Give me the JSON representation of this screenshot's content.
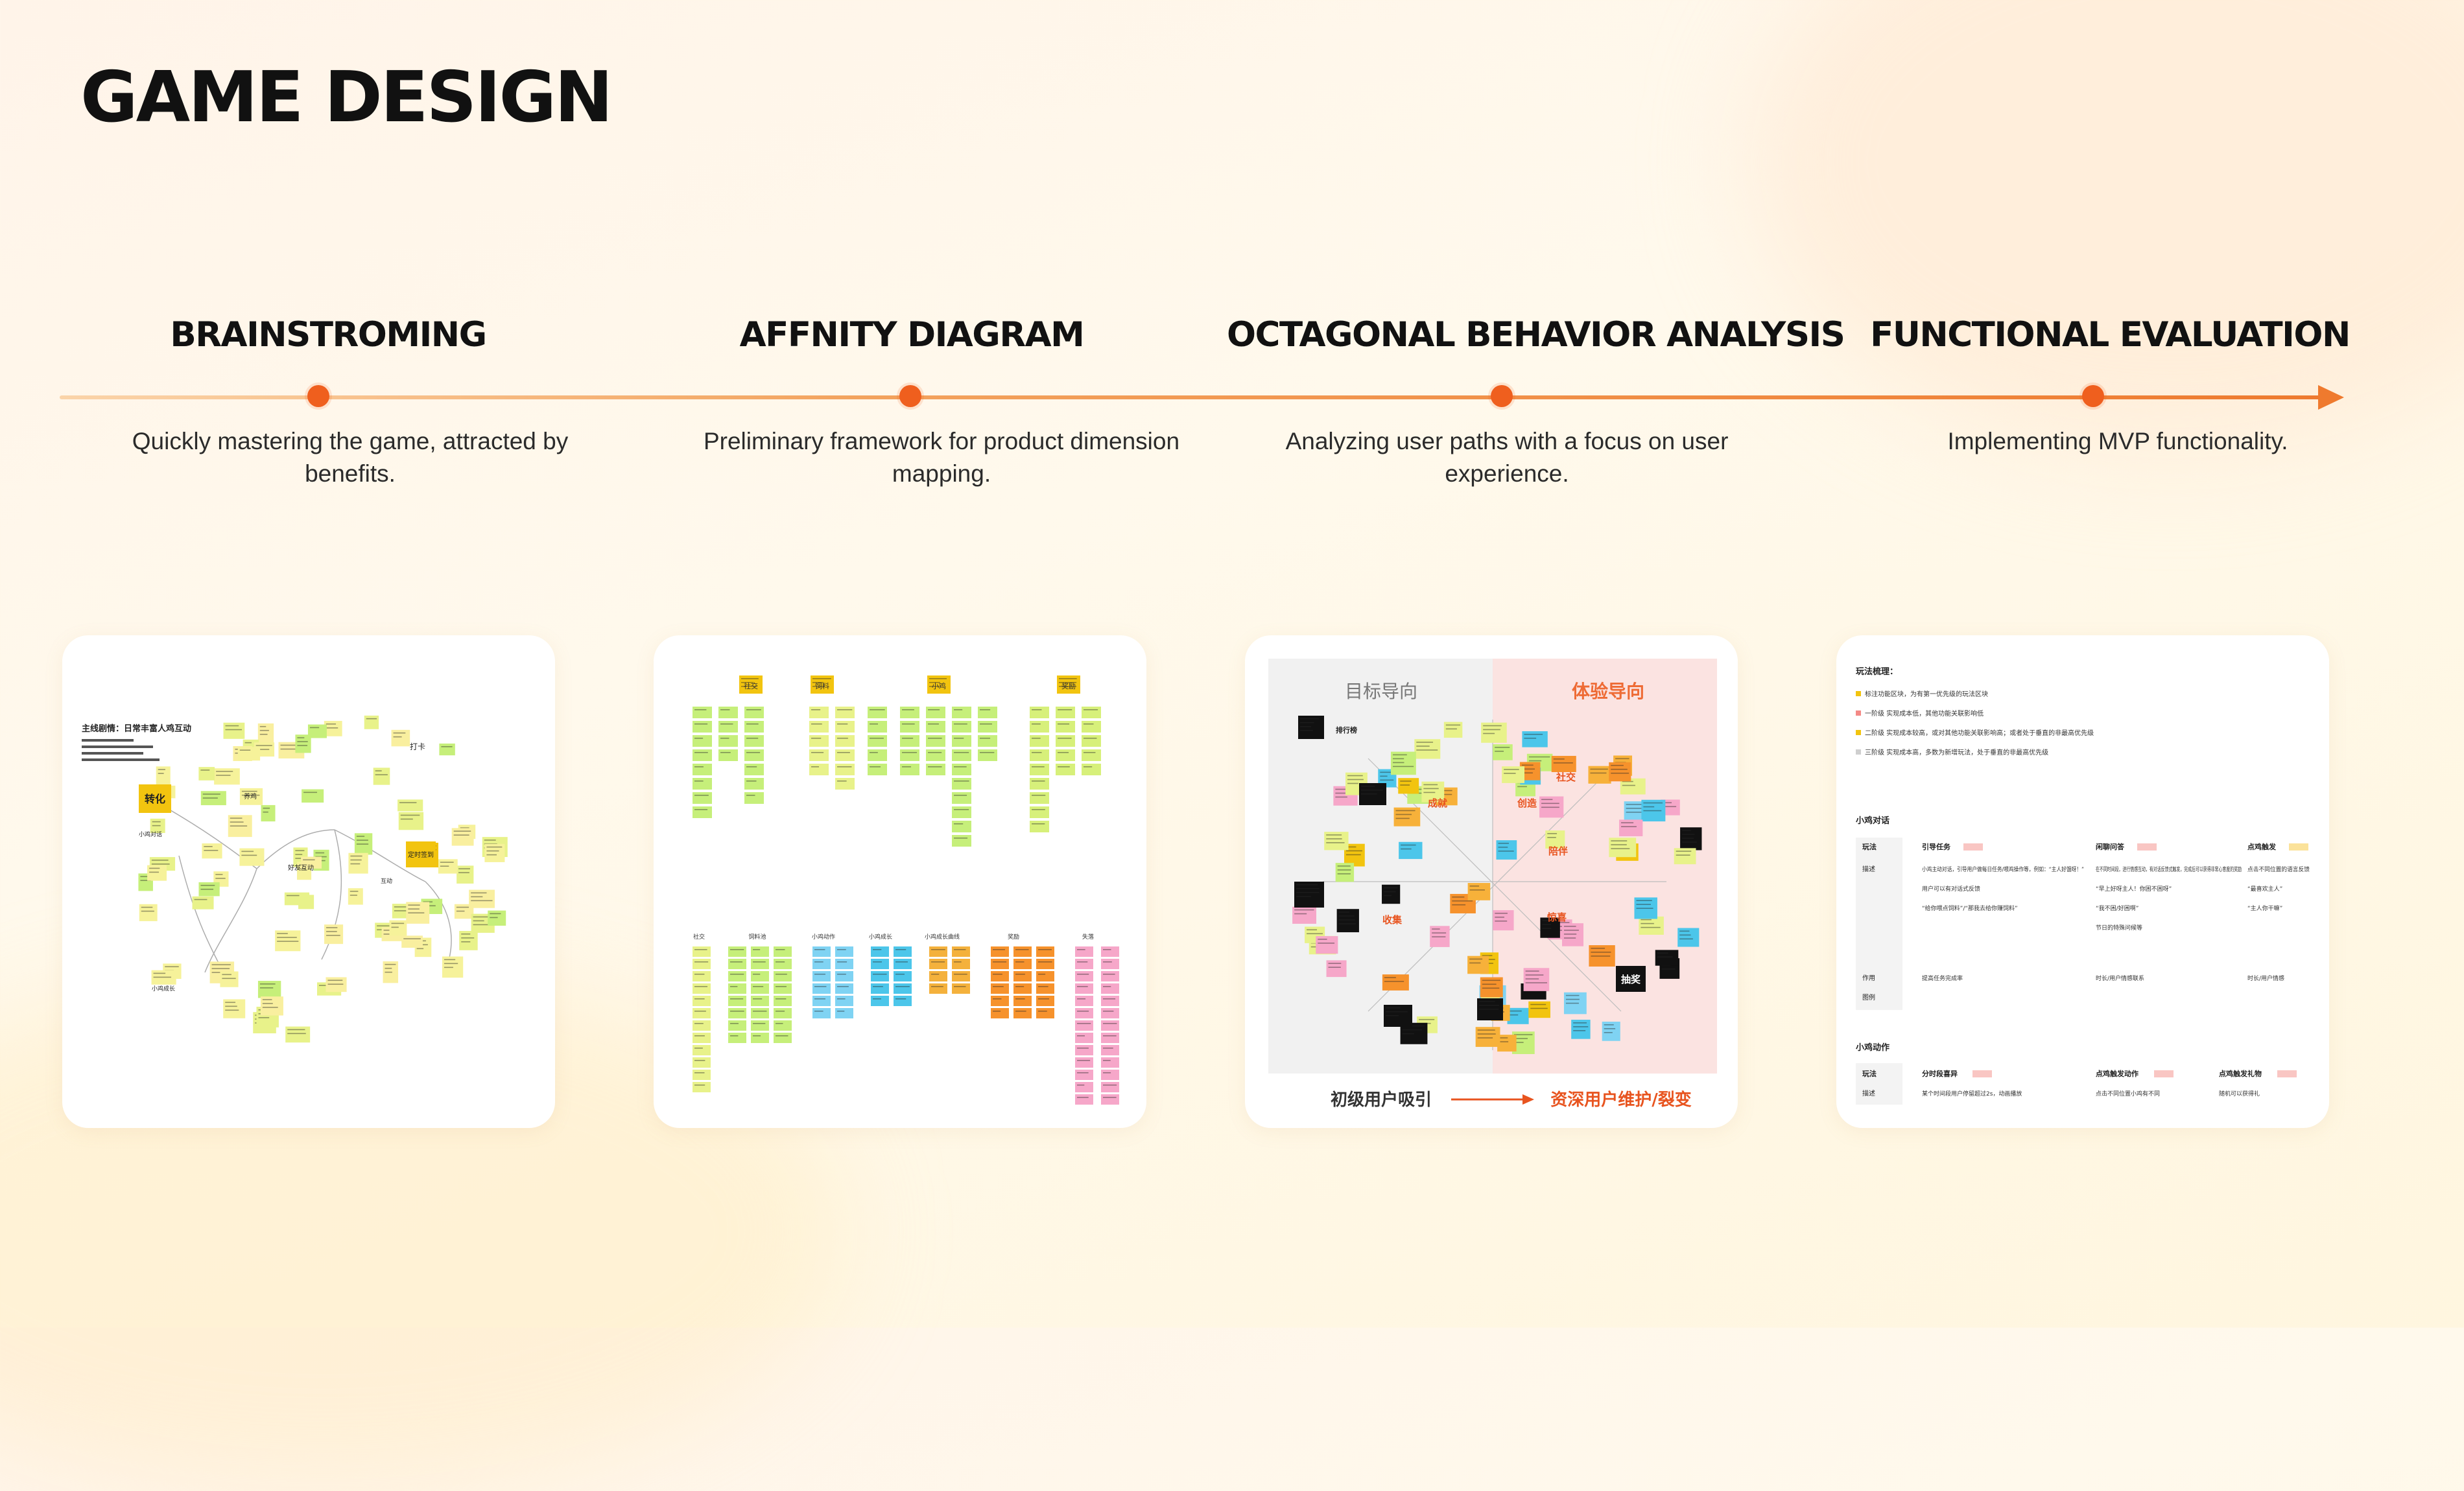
{
  "page": {
    "title": "GAME DESIGN"
  },
  "steps": [
    {
      "title": "BRAINSTROMING",
      "description": "Quickly mastering the game, attracted by benefits."
    },
    {
      "title": "AFFNITY DIAGRAM",
      "description": "Preliminary framework for product dimension mapping."
    },
    {
      "title": "OCTAGONAL BEHAVIOR ANALYSIS",
      "description": "Analyzing user paths with a focus on user experience."
    },
    {
      "title": "FUNCTIONAL EVALUATION",
      "description": "Implementing MVP functionality."
    }
  ],
  "cards": {
    "brainstorm": {
      "heading": "主线剧情：日常丰富人鸡互动",
      "notes": [
        "转化",
        "小鸡对话",
        "打卡",
        "定时签到",
        "好友互动",
        "养鸡",
        "小鸡成长",
        "互动"
      ]
    },
    "affinity": {
      "top_headers": [
        "社交",
        "饲料",
        "小鸡",
        "奖励"
      ],
      "bottom_headers": [
        "社交",
        "饲料池",
        "小鸡动作",
        "小鸡成长",
        "小鸡成长曲线",
        "奖励",
        "失落"
      ]
    },
    "octagonal": {
      "left_label": "目标导向",
      "right_label": "体验导向",
      "bottom_left": "初级用户吸引",
      "bottom_right": "资深用户维护/裂变",
      "notes": [
        "成就",
        "社交",
        "创造",
        "陪伴",
        "抽奖",
        "排行榜",
        "收集",
        "惊喜"
      ]
    },
    "functional": {
      "heading": "玩法梳理：",
      "legend": [
        "标注功能区块，为有第一优先级的玩法区块",
        "一阶级 实现成本低，其他功能关联影响低",
        "二阶级 实现成本较高，或对其他功能关联影响高；或者处于垂直的非最高优先级",
        "三阶级 实现成本高，多数为新增玩法，处于垂直的非最高优先级"
      ],
      "section1": "小鸡对话",
      "table1_headers": [
        "玩法",
        "引导任务",
        "闲聊问答",
        "点鸡触发"
      ],
      "table1_rows": [
        [
          "描述",
          "小鸡主动对话，引导用户做每日任务/喂鸡操作等，例如：“主人好饿呀！”",
          "在不同时间段，进行情感互动，有对话反馈式触发，完成后可以获得非常心意度的奖励",
          "点击不同位置的语言反馈"
        ],
        [
          "",
          "用户可以有对话式反馈",
          "“早上好呀主人！你困不困呀”",
          "“最喜欢主人”"
        ],
        [
          "",
          "“给你喂点饲料”/“那我去给你赚饲料”",
          "“我不困/好困啊”",
          "“主人你干嘛”"
        ],
        [
          "",
          "",
          "节日的特殊问候等",
          ""
        ],
        [
          "作用",
          "提高任务完成率",
          "时长/用户情感联系",
          "时长/用户情感"
        ],
        [
          "图例",
          "",
          "",
          ""
        ]
      ],
      "section2": "小鸡动作",
      "table2_headers": [
        "玩法",
        "分时段喜异",
        "点鸡触发动作",
        "点鸡触发礼物"
      ],
      "table2_row": [
        "描述",
        "某个时间段用户停留超过2s，动画播放",
        "点击不同位置小鸡有不同",
        "随机可以获得礼"
      ]
    }
  },
  "colors": {
    "accent": "#ef5f1e",
    "line": "#f3a35e"
  }
}
